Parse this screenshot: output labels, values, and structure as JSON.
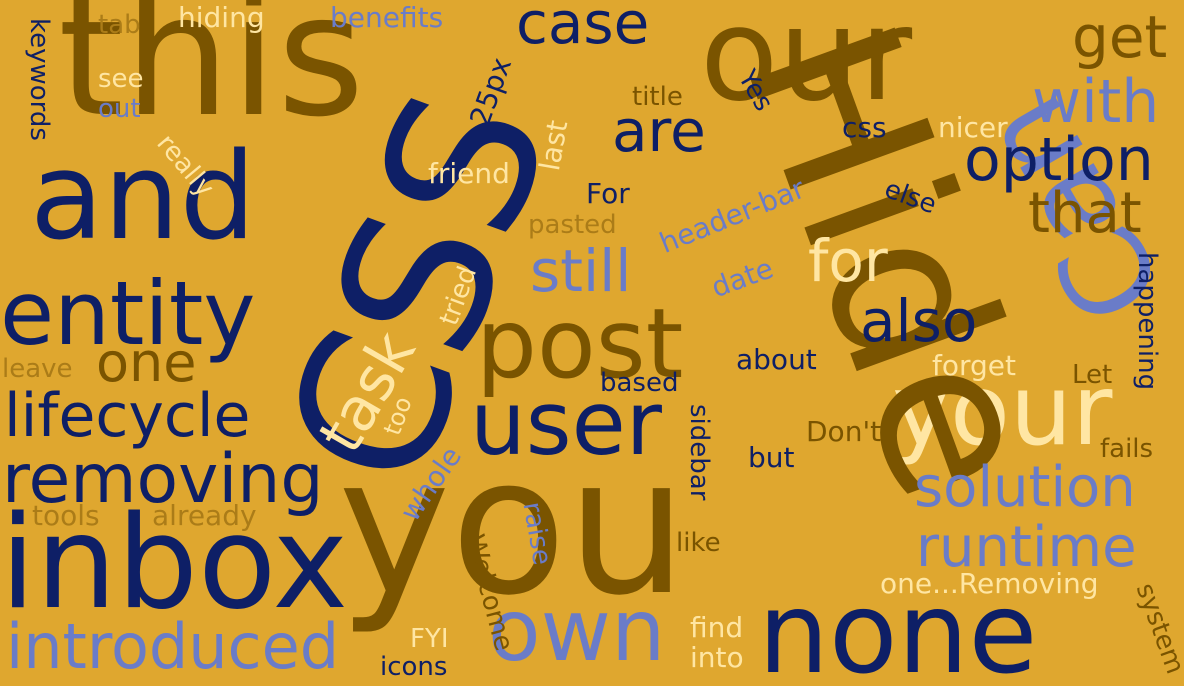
{
  "background": "#dfa72f",
  "palette": {
    "brown": "#7a5400",
    "navy": "#0e1f66",
    "blue": "#6a7cc8",
    "cream": "#ffe6a3",
    "tan": "#ab7c18"
  },
  "words": {
    "this": "this",
    "css_big": "CSS",
    "hide": "Hide",
    "your_top": "our",
    "and": "and",
    "entity": "entity",
    "lifecycle": "lifecycle",
    "removing": "removing",
    "inbox": "inbox",
    "introduced": "introduced",
    "you": "you",
    "none": "none",
    "own": "own",
    "user": "user",
    "post": "post",
    "task": "task",
    "your": "your",
    "can": "Can",
    "option": "option",
    "that": "that",
    "with": "with",
    "get": "get",
    "case": "case",
    "are": "are",
    "still": "still",
    "for": "for",
    "also": "also",
    "one": "one",
    "solution": "solution",
    "runtime": "runtime",
    "benefits": "benefits",
    "hiding": "hiding",
    "tab": "tab",
    "keywords": "keywords",
    "see": "see",
    "out": "out",
    "really": "really",
    "friend": "friend",
    "last": "last",
    "25px": "25px",
    "title": "title",
    "yes": "Yes",
    "css_small": "css",
    "nicer": "nicer",
    "for_small": "For",
    "header_bar": "header-bar",
    "else": "else",
    "pasted": "pasted",
    "tried": "tried",
    "date": "date",
    "happening": "happening",
    "about": "about",
    "forget": "forget",
    "based": "based",
    "let": "Let",
    "leave": "leave",
    "too": "too",
    "dont": "Don't",
    "fails": "fails",
    "whole": "whole",
    "sidebar": "sidebar",
    "but": "but",
    "tools": "tools",
    "already": "already",
    "raise": "raise",
    "like": "like",
    "welcome": "Welcome",
    "removing_long": "one...Removing",
    "find": "find",
    "into": "into",
    "system": "system",
    "fyi": "FYI",
    "icons": "icons"
  }
}
